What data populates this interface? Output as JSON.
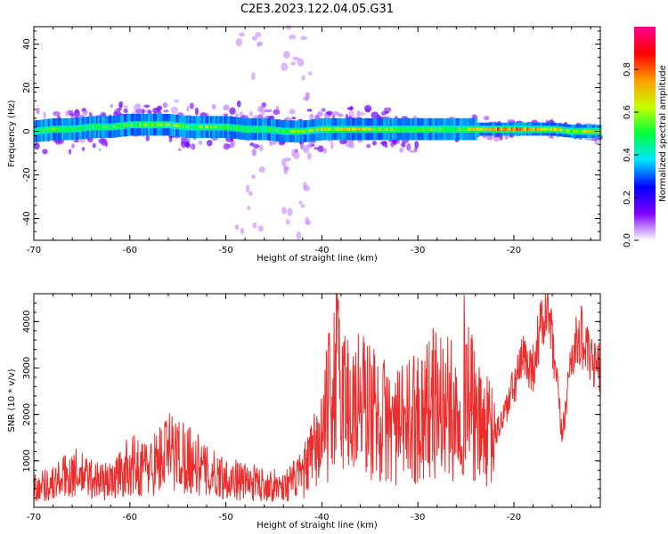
{
  "title": "C2E3.2023.122.04.05.G31",
  "chart_data": [
    {
      "type": "heatmap",
      "xlabel": "Height of straight line (km)",
      "ylabel": "Frequency (Hz)",
      "xlim": [
        -70,
        -11
      ],
      "ylim": [
        -50,
        48
      ],
      "xticks": [
        -70,
        -60,
        -50,
        -40,
        -30,
        -20
      ],
      "yticks": [
        -40,
        -20,
        0,
        20,
        40
      ],
      "colorbar": {
        "label": "Normalized spectral amplitude",
        "range": [
          0,
          1
        ],
        "ticks": [
          "0.0",
          "0.2",
          "0.4",
          "0.6",
          "0.8"
        ],
        "colors": [
          "#ffffff",
          "#7f00ff",
          "#0000ff",
          "#00e5ff",
          "#00ff3c",
          "#c8ff00",
          "#ff9900",
          "#ff0000",
          "#ff0090"
        ]
      },
      "ridge": {
        "height": [
          -70,
          -68,
          -66,
          -64,
          -62,
          -60,
          -58,
          -56,
          -54,
          -52,
          -50,
          -48,
          -46,
          -44,
          -42,
          -40,
          -38,
          -36,
          -34,
          -32,
          -30,
          -28,
          -26,
          -24,
          -22,
          -20,
          -18,
          -16,
          -14,
          -12
        ],
        "frequency": [
          0,
          1,
          1,
          2,
          2,
          3,
          3,
          3,
          2,
          2,
          2,
          1,
          1,
          0,
          0,
          1,
          1,
          1,
          1,
          1,
          1,
          1,
          1,
          1,
          1,
          1,
          1,
          1,
          0,
          0
        ],
        "amplitude": [
          0.5,
          0.55,
          0.5,
          0.5,
          0.55,
          0.55,
          0.6,
          0.6,
          0.55,
          0.6,
          0.55,
          0.5,
          0.5,
          0.55,
          0.6,
          0.65,
          0.65,
          0.7,
          0.6,
          0.55,
          0.6,
          0.55,
          0.55,
          0.7,
          0.8,
          0.8,
          0.75,
          0.7,
          0.6,
          0.65
        ]
      }
    },
    {
      "type": "line",
      "xlabel": "Height of straight line (km)",
      "ylabel": "SNR (10 * v/v)",
      "xlim": [
        -70,
        -11
      ],
      "ylim": [
        0,
        4600
      ],
      "xticks": [
        -70,
        -60,
        -50,
        -40,
        -30,
        -20
      ],
      "yticks": [
        1000,
        2000,
        3000,
        4000
      ],
      "color": "#ee2c2c",
      "series": [
        {
          "x": [
            -70,
            -68,
            -66,
            -64,
            -62,
            -60,
            -58,
            -56,
            -54,
            -52,
            -50,
            -48,
            -46,
            -44,
            -42,
            -40,
            -38.5,
            -37,
            -36,
            -34,
            -32,
            -30,
            -28,
            -26,
            -25,
            -24,
            -22,
            -20.5,
            -19,
            -18,
            -17.5,
            -16.5,
            -15.5,
            -15,
            -14,
            -13,
            -12,
            -11
          ],
          "y": [
            450,
            520,
            750,
            620,
            550,
            900,
            850,
            1200,
            1100,
            750,
            650,
            550,
            500,
            450,
            700,
            1500,
            2900,
            2100,
            2300,
            1900,
            1700,
            2000,
            2300,
            2000,
            2800,
            1800,
            1500,
            2300,
            3200,
            3000,
            3600,
            4350,
            2600,
            1500,
            3300,
            3700,
            3100,
            3000
          ]
        }
      ]
    }
  ]
}
